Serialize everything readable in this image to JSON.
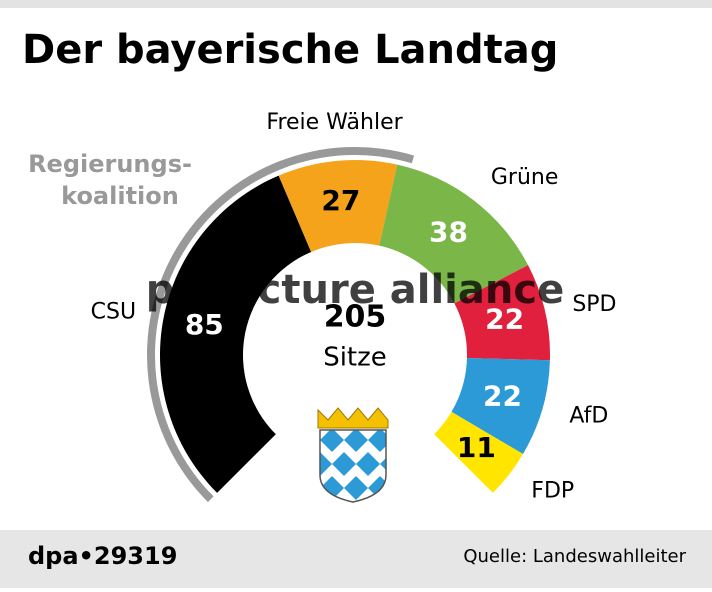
{
  "chart_data": {
    "type": "parliament",
    "title": "Der bayerische Landtag",
    "categories": [
      "CSU",
      "Freie Wähler",
      "Grüne",
      "SPD",
      "AfD",
      "FDP"
    ],
    "values": [
      85,
      27,
      38,
      22,
      22,
      11
    ],
    "colors": [
      "#000000",
      "#f5a31a",
      "#7ab648",
      "#e0203d",
      "#2b9ad6",
      "#ffe500"
    ],
    "label_colors": [
      "#ffffff",
      "#000000",
      "#ffffff",
      "#ffffff",
      "#ffffff",
      "#000000"
    ],
    "total": 205,
    "total_label": "Sitze",
    "annotation": [
      "Regierungs-",
      "koalition"
    ],
    "watermark": "pa picture alliance",
    "footer": {
      "id": "dpa•29319",
      "source": "Quelle: Landeswahlleiter"
    }
  }
}
